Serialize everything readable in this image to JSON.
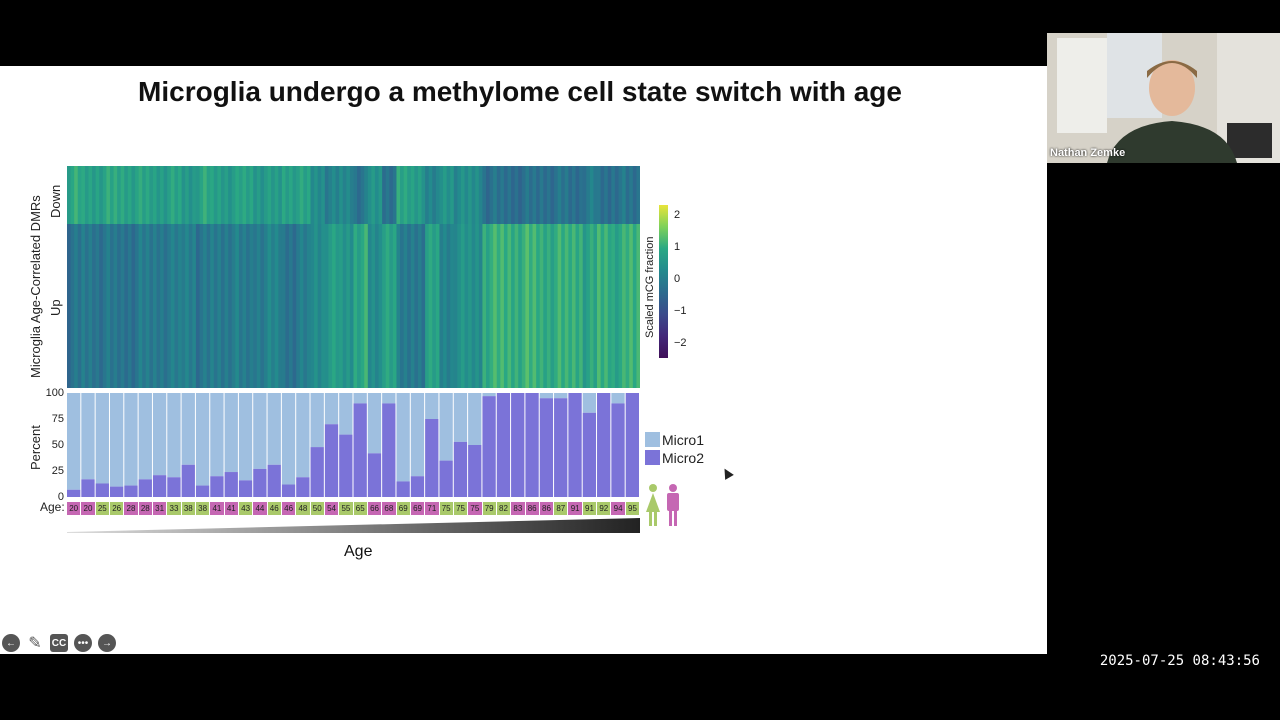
{
  "slide": {
    "title": "Microglia undergo a methylome cell state switch with age",
    "heatmap_ylabel": "Microglia Age-Correlated DMRs",
    "heatmap_rows": [
      "Down",
      "Up"
    ],
    "colorbar_title": "Scaled mCG fraction",
    "colorbar_ticks": [
      "2",
      "1",
      "0",
      "−1",
      "−2"
    ],
    "percent_label": "Percent",
    "percent_ticks": [
      "100",
      "75",
      "50",
      "25",
      "0"
    ],
    "legend": [
      {
        "label": "Micro1",
        "color": "#9fbfe0"
      },
      {
        "label": "Micro2",
        "color": "#7b73d8"
      }
    ],
    "age_label": "Age:",
    "ages": [
      "20",
      "20",
      "25",
      "26",
      "28",
      "28",
      "31",
      "33",
      "38",
      "38",
      "41",
      "41",
      "43",
      "44",
      "46",
      "46",
      "48",
      "50",
      "54",
      "55",
      "65",
      "66",
      "68",
      "69",
      "69",
      "71",
      "75",
      "75",
      "75",
      "79",
      "82",
      "83",
      "86",
      "86",
      "87",
      "91",
      "91",
      "92",
      "94",
      "95"
    ],
    "age_sex": [
      "f",
      "f",
      "m",
      "m",
      "f",
      "f",
      "f",
      "m",
      "m",
      "m",
      "f",
      "f",
      "m",
      "f",
      "m",
      "f",
      "m",
      "m",
      "f",
      "m",
      "m",
      "f",
      "f",
      "m",
      "f",
      "f",
      "m",
      "m",
      "f",
      "m",
      "m",
      "f",
      "f",
      "f",
      "m",
      "f",
      "m",
      "m",
      "f",
      "m"
    ],
    "micro2_percent": [
      7,
      17,
      13,
      10,
      11,
      17,
      21,
      19,
      31,
      11,
      20,
      24,
      16,
      27,
      31,
      12,
      19,
      48,
      70,
      60,
      90,
      42,
      90,
      15,
      20,
      75,
      35,
      53,
      50,
      97,
      100,
      100,
      100,
      95,
      95,
      100,
      81,
      100,
      90,
      100
    ],
    "x_axis_label": "Age",
    "colors": {
      "female": "#c567b3",
      "male": "#a9c96a",
      "slide_bg": "#ffffff"
    }
  },
  "video": {
    "participant_name": "Nathan Zemke"
  },
  "controls": [
    "back-icon",
    "pen-icon",
    "cc-icon",
    "more-icon",
    "forward-icon"
  ],
  "timestamp": "2025-07-25 08:43:56"
}
